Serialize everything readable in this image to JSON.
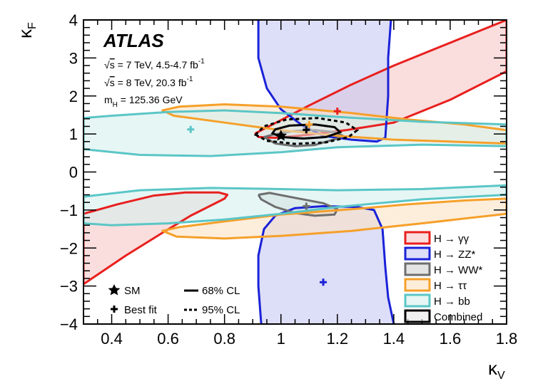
{
  "chart_data": {
    "type": "contour",
    "experiment": "ATLAS",
    "info_lines": {
      "sqrt_s": "s",
      "energy7": " = 7 TeV, 4.5-4.7 fb",
      "energy8": " = 8 TeV, 20.3 fb",
      "lumi_exp": "-1",
      "mass_prefix": "m",
      "mass_sub": "H",
      "mass_value": " = 125.36 GeV"
    },
    "xlabel": {
      "main": "κ",
      "sub": "V"
    },
    "ylabel": {
      "main": "κ",
      "sub": "F"
    },
    "xlim": [
      0.3,
      1.8
    ],
    "ylim": [
      -4,
      4
    ],
    "xticks": [
      "0.4",
      "0.6",
      "0.8",
      "1",
      "1.2",
      "1.4",
      "1.6",
      "1.8"
    ],
    "xtick_values": [
      0.4,
      0.6,
      0.8,
      1.0,
      1.2,
      1.4,
      1.6,
      1.8
    ],
    "yticks": [
      "−4",
      "−3",
      "−2",
      "−1",
      "0",
      "1",
      "2",
      "3",
      "4"
    ],
    "ytick_values": [
      -4,
      -3,
      -2,
      -1,
      0,
      1,
      2,
      3,
      4
    ],
    "sm_point": {
      "x": 1.0,
      "y": 1.0
    },
    "channels": [
      {
        "name": "H → γγ",
        "color": "#e8201e",
        "fill": "#f6c6c6",
        "best_fit": {
          "x": 1.2,
          "y": 1.6
        },
        "contours": [
          [
            [
              0.3,
              -2.95
            ],
            [
              0.45,
              -2.2
            ],
            [
              0.58,
              -1.6
            ],
            [
              0.68,
              -1.15
            ],
            [
              0.76,
              -0.85
            ],
            [
              0.8,
              -0.7
            ],
            [
              0.81,
              -0.6
            ],
            [
              0.78,
              -0.54
            ],
            [
              0.66,
              -0.54
            ],
            [
              0.55,
              -0.62
            ],
            [
              0.42,
              -0.85
            ],
            [
              0.3,
              -1.1
            ],
            [
              0.3,
              -2.15
            ],
            [
              0.3,
              -2.95
            ]
          ],
          [
            [
              1.8,
              4.0
            ],
            [
              1.8,
              2.65
            ],
            [
              1.6,
              1.9
            ],
            [
              1.4,
              1.3
            ],
            [
              1.23,
              1.1
            ],
            [
              1.1,
              0.98
            ],
            [
              0.98,
              0.9
            ],
            [
              0.92,
              0.92
            ],
            [
              0.91,
              1.02
            ],
            [
              0.97,
              1.25
            ],
            [
              1.1,
              1.75
            ],
            [
              1.25,
              2.3
            ],
            [
              1.4,
              2.8
            ],
            [
              1.55,
              3.25
            ],
            [
              1.7,
              3.7
            ],
            [
              1.8,
              4.0
            ]
          ]
        ]
      },
      {
        "name": "H → ZZ*",
        "color": "#1a22d8",
        "fill": "#c6c8f2",
        "best_fit": {
          "x": 1.15,
          "y": -2.9
        },
        "contours": [
          [
            [
              0.92,
              4.0
            ],
            [
              0.92,
              3.0
            ],
            [
              0.95,
              2.2
            ],
            [
              1.0,
              1.65
            ],
            [
              1.08,
              1.2
            ],
            [
              1.15,
              0.95
            ],
            [
              1.25,
              0.85
            ],
            [
              1.34,
              0.8
            ],
            [
              1.37,
              0.9
            ],
            [
              1.38,
              2.0
            ],
            [
              1.38,
              3.0
            ],
            [
              1.39,
              4.0
            ]
          ],
          [
            [
              0.93,
              -4.0
            ],
            [
              0.92,
              -3.0
            ],
            [
              0.92,
              -2.2
            ],
            [
              0.94,
              -1.5
            ],
            [
              0.98,
              -1.15
            ],
            [
              1.05,
              -0.95
            ],
            [
              1.15,
              -0.9
            ],
            [
              1.27,
              -0.92
            ],
            [
              1.33,
              -1.0
            ],
            [
              1.36,
              -1.5
            ],
            [
              1.37,
              -2.5
            ],
            [
              1.38,
              -3.3
            ],
            [
              1.4,
              -4.0
            ]
          ]
        ]
      },
      {
        "name": "H → WW*",
        "color": "#6e6e6e",
        "fill": "#d2d2d2",
        "best_fit": {
          "x": 1.09,
          "y": -0.9
        },
        "contours": [
          [
            [
              0.94,
              0.92
            ],
            [
              0.98,
              0.75
            ],
            [
              1.05,
              0.68
            ],
            [
              1.12,
              0.71
            ],
            [
              1.2,
              0.88
            ],
            [
              1.22,
              0.95
            ],
            [
              1.19,
              1.05
            ],
            [
              1.12,
              1.1
            ],
            [
              1.05,
              1.08
            ],
            [
              0.99,
              1.02
            ],
            [
              0.94,
              0.92
            ]
          ],
          [
            [
              0.92,
              -0.6
            ],
            [
              0.96,
              -0.55
            ],
            [
              1.05,
              -0.68
            ],
            [
              1.15,
              -0.82
            ],
            [
              1.2,
              -0.98
            ],
            [
              1.19,
              -1.12
            ],
            [
              1.12,
              -1.15
            ],
            [
              1.05,
              -1.08
            ],
            [
              0.98,
              -0.92
            ],
            [
              0.93,
              -0.72
            ],
            [
              0.92,
              -0.6
            ]
          ]
        ]
      },
      {
        "name": "H → ττ",
        "color": "#f5a02a",
        "fill": "#fce3c4",
        "best_fit": {
          "x": 1.1,
          "y": 1.25
        },
        "contours": [
          [
            [
              1.8,
              1.1
            ],
            [
              1.65,
              1.25
            ],
            [
              1.45,
              1.38
            ],
            [
              1.25,
              1.55
            ],
            [
              1.0,
              1.72
            ],
            [
              0.8,
              1.78
            ],
            [
              0.64,
              1.72
            ],
            [
              0.58,
              1.62
            ],
            [
              0.62,
              1.48
            ],
            [
              0.82,
              1.28
            ],
            [
              1.0,
              1.1
            ],
            [
              1.2,
              0.95
            ],
            [
              1.4,
              0.85
            ],
            [
              1.6,
              0.8
            ],
            [
              1.8,
              0.75
            ],
            [
              1.8,
              1.1
            ]
          ],
          [
            [
              1.8,
              -0.7
            ],
            [
              1.65,
              -0.75
            ],
            [
              1.45,
              -0.85
            ],
            [
              1.25,
              -0.98
            ],
            [
              1.0,
              -1.12
            ],
            [
              0.8,
              -1.3
            ],
            [
              0.64,
              -1.45
            ],
            [
              0.58,
              -1.55
            ],
            [
              0.63,
              -1.7
            ],
            [
              0.8,
              -1.75
            ],
            [
              1.0,
              -1.68
            ],
            [
              1.25,
              -1.55
            ],
            [
              1.5,
              -1.35
            ],
            [
              1.8,
              -1.1
            ],
            [
              1.8,
              -0.7
            ]
          ]
        ]
      },
      {
        "name": "H → bb",
        "color": "#5bc6c6",
        "fill": "#d6f0ef",
        "best_fit": {
          "x": 0.68,
          "y": 1.12
        },
        "contours": [
          [
            [
              0.3,
              0.6
            ],
            [
              0.5,
              0.45
            ],
            [
              0.75,
              0.42
            ],
            [
              1.0,
              0.52
            ],
            [
              1.2,
              0.65
            ],
            [
              1.5,
              0.72
            ],
            [
              1.8,
              0.68
            ],
            [
              1.8,
              1.25
            ],
            [
              1.5,
              1.32
            ],
            [
              1.2,
              1.45
            ],
            [
              1.0,
              1.55
            ],
            [
              0.8,
              1.62
            ],
            [
              0.6,
              1.58
            ],
            [
              0.4,
              1.48
            ],
            [
              0.3,
              1.42
            ],
            [
              0.3,
              0.6
            ]
          ],
          [
            [
              0.3,
              -0.65
            ],
            [
              0.5,
              -0.48
            ],
            [
              0.75,
              -0.42
            ],
            [
              1.0,
              -0.45
            ],
            [
              1.2,
              -0.48
            ],
            [
              1.5,
              -0.45
            ],
            [
              1.8,
              -0.35
            ],
            [
              1.8,
              -0.6
            ],
            [
              1.5,
              -0.72
            ],
            [
              1.2,
              -0.92
            ],
            [
              1.0,
              -1.1
            ],
            [
              0.8,
              -1.25
            ],
            [
              0.6,
              -1.35
            ],
            [
              0.4,
              -1.4
            ],
            [
              0.3,
              -1.35
            ],
            [
              0.3,
              -0.65
            ]
          ]
        ]
      }
    ],
    "combined": {
      "name": "Combined",
      "color": "#000000",
      "fill": "#e8e8e8",
      "best_fit": {
        "x": 1.09,
        "y": 1.11
      },
      "contour68": [
        [
          0.97,
          1.02
        ],
        [
          1.0,
          0.92
        ],
        [
          1.08,
          0.88
        ],
        [
          1.16,
          0.92
        ],
        [
          1.21,
          1.05
        ],
        [
          1.19,
          1.18
        ],
        [
          1.12,
          1.25
        ],
        [
          1.03,
          1.22
        ],
        [
          0.98,
          1.12
        ],
        [
          0.97,
          1.02
        ]
      ],
      "contour95": [
        [
          0.91,
          0.98
        ],
        [
          0.95,
          0.82
        ],
        [
          1.05,
          0.74
        ],
        [
          1.16,
          0.78
        ],
        [
          1.24,
          0.92
        ],
        [
          1.27,
          1.1
        ],
        [
          1.23,
          1.3
        ],
        [
          1.13,
          1.42
        ],
        [
          1.02,
          1.38
        ],
        [
          0.94,
          1.2
        ],
        [
          0.91,
          0.98
        ]
      ]
    },
    "legend_channels": [
      "H → γγ",
      "H → ZZ*",
      "H → WW*",
      "H → ττ",
      "H → bb",
      "Combined"
    ],
    "legend_markers": {
      "sm": "SM",
      "best": "Best fit",
      "cl68": "68% CL",
      "cl95": "95% CL"
    }
  }
}
